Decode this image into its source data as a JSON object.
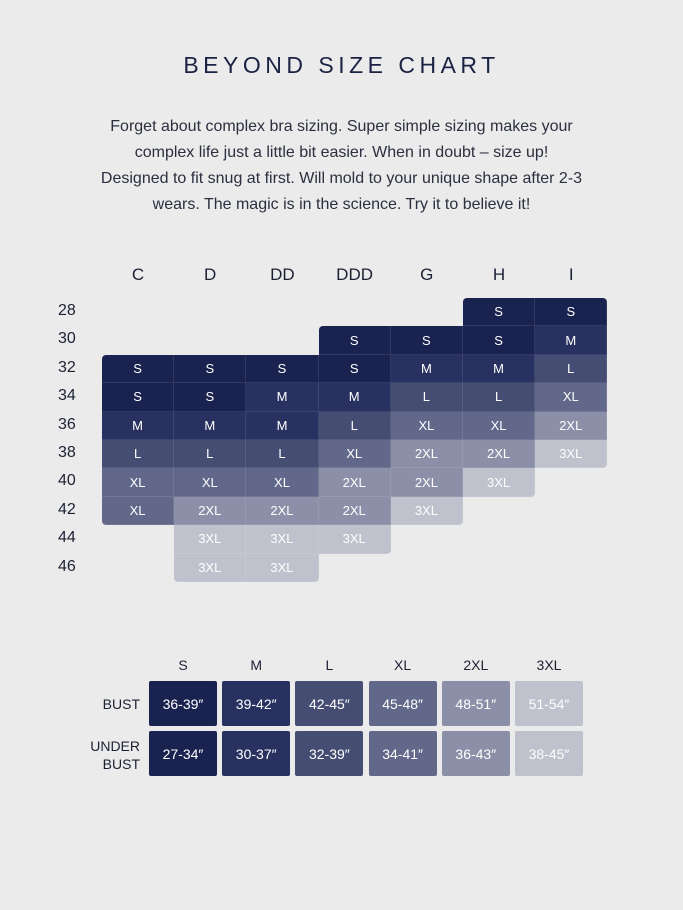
{
  "title": "BEYOND SIZE CHART",
  "intro": [
    "Forget about complex bra sizing. Super simple sizing makes your",
    "complex life just a little bit easier. When in doubt – size up!",
    "Designed to fit snug at first. Will mold to your unique shape after 2-3",
    "wears. The magic is in the science. Try it to believe it!"
  ],
  "chart_data": [
    {
      "type": "table",
      "columns": [
        "C",
        "D",
        "DD",
        "DDD",
        "G",
        "H",
        "I"
      ],
      "rows": [
        {
          "band": "28",
          "sizes": [
            "",
            "",
            "",
            "",
            "",
            "S",
            "S"
          ]
        },
        {
          "band": "30",
          "sizes": [
            "",
            "",
            "",
            "S",
            "S",
            "S",
            "M"
          ]
        },
        {
          "band": "32",
          "sizes": [
            "S",
            "S",
            "S",
            "S",
            "M",
            "M",
            "L"
          ]
        },
        {
          "band": "34",
          "sizes": [
            "S",
            "S",
            "M",
            "M",
            "L",
            "L",
            "XL"
          ]
        },
        {
          "band": "36",
          "sizes": [
            "M",
            "M",
            "M",
            "L",
            "XL",
            "XL",
            "2XL"
          ]
        },
        {
          "band": "38",
          "sizes": [
            "L",
            "L",
            "L",
            "XL",
            "2XL",
            "2XL",
            "3XL"
          ]
        },
        {
          "band": "40",
          "sizes": [
            "XL",
            "XL",
            "XL",
            "2XL",
            "2XL",
            "3XL",
            ""
          ]
        },
        {
          "band": "42",
          "sizes": [
            "XL",
            "2XL",
            "2XL",
            "2XL",
            "3XL",
            "",
            ""
          ]
        },
        {
          "band": "44",
          "sizes": [
            "",
            "3XL",
            "3XL",
            "3XL",
            "",
            "",
            ""
          ]
        },
        {
          "band": "46",
          "sizes": [
            "",
            "3XL",
            "3XL",
            "",
            "",
            "",
            ""
          ]
        }
      ]
    },
    {
      "type": "table",
      "columns": [
        "S",
        "M",
        "L",
        "XL",
        "2XL",
        "3XL"
      ],
      "rows": [
        {
          "label": [
            "BUST"
          ],
          "values": [
            "36-39″",
            "39-42″",
            "42-45″",
            "45-48″",
            "48-51″",
            "51-54″"
          ]
        },
        {
          "label": [
            "UNDER",
            "BUST"
          ],
          "values": [
            "27-34″",
            "30-37″",
            "32-39″",
            "34-41″",
            "36-43″",
            "38-45″"
          ]
        }
      ]
    }
  ],
  "size_colors": {
    "S": "#1a2250",
    "M": "#283160",
    "L": "#454d73",
    "XL": "#61688a",
    "2XL": "#8b90a8",
    "3XL": "#bfc1cd"
  }
}
